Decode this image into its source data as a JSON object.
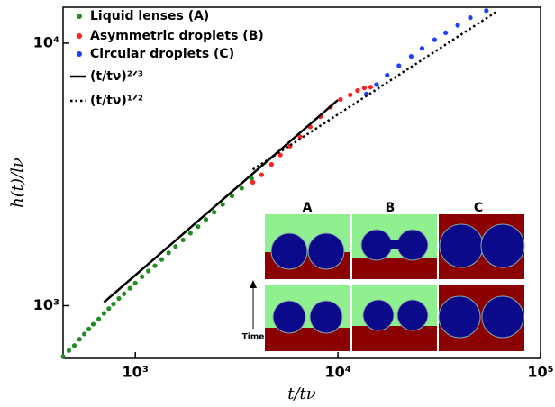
{
  "chart_data": {
    "type": "scatter",
    "log_x": true,
    "log_y": true,
    "xlabel": "t/tν",
    "ylabel": "h(t)/lν",
    "xlim": [
      440,
      100000
    ],
    "ylim": [
      630,
      13700
    ],
    "xticks": [
      {
        "value": 1000,
        "label": "10³"
      },
      {
        "value": 10000,
        "label": "10⁴"
      },
      {
        "value": 100000,
        "label": "10⁵"
      }
    ],
    "yticks": [
      {
        "value": 1000,
        "label": "10³"
      },
      {
        "value": 10000,
        "label": "10⁴"
      }
    ],
    "legend": "upper left",
    "series": [
      {
        "name": "Liquid lenses (A)",
        "color": "#228b22",
        "style": "marker",
        "x": [
          440,
          470,
          500,
          530,
          560,
          590,
          620,
          660,
          700,
          740,
          780,
          830,
          880,
          940,
          1000,
          1080,
          1160,
          1250,
          1350,
          1460,
          1580,
          1720,
          1870,
          2040,
          2230,
          2450,
          2700,
          3000,
          3350,
          3750
        ],
        "values": [
          640,
          675,
          705,
          745,
          780,
          815,
          850,
          890,
          935,
          975,
          1015,
          1065,
          1110,
          1165,
          1220,
          1290,
          1355,
          1420,
          1500,
          1590,
          1680,
          1780,
          1890,
          2000,
          2130,
          2270,
          2430,
          2620,
          2800,
          3050
        ]
      },
      {
        "name": "Asymmetric droplets (B)",
        "color": "#ff2020",
        "style": "marker",
        "x": [
          3800,
          4200,
          4700,
          5200,
          5800,
          6500,
          7300,
          8200,
          9200,
          10300,
          11500,
          12500,
          13500,
          14500
        ],
        "values": [
          2950,
          3150,
          3450,
          3750,
          4050,
          4400,
          4800,
          5250,
          5700,
          6100,
          6350,
          6600,
          6750,
          6800
        ]
      },
      {
        "name": "Circular droplets (C)",
        "color": "#2040ff",
        "style": "marker",
        "x": [
          13800,
          15500,
          17500,
          20000,
          23000,
          26000,
          30000,
          34000,
          39000,
          45000,
          54000
        ],
        "values": [
          6400,
          6950,
          7550,
          8200,
          8900,
          9550,
          10300,
          10950,
          11700,
          12500,
          13300
        ]
      },
      {
        "name": "(t/tν)²ᐟ³",
        "color": "#000000",
        "style": "solid",
        "x": [
          700,
          10000
        ],
        "values": [
          1030,
          6070
        ]
      },
      {
        "name": "(t/tν)¹ᐟ²",
        "color": "#000000",
        "style": "dotted",
        "x": [
          3800,
          60000
        ],
        "values": [
          3300,
          13110
        ]
      }
    ],
    "inset": {
      "labels": [
        "A",
        "B",
        "C"
      ],
      "time_label": "Time"
    }
  }
}
